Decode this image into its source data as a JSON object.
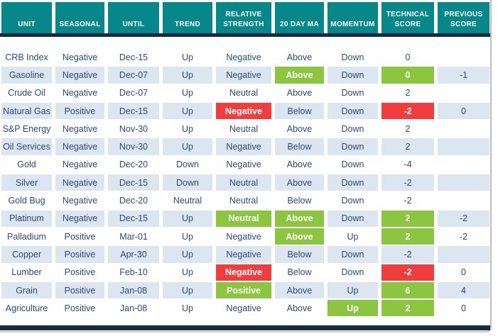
{
  "colors": {
    "header_bg": "#06878a",
    "divider": "#152b46",
    "green": "#8cc540",
    "red": "#f23d3f",
    "row_alt": "#dce6f1",
    "row_plain": "#ffffff",
    "text": "#2b4a7a"
  },
  "table": {
    "columns": [
      "UNIT",
      "SEASONAL",
      "UNTIL",
      "TREND",
      "RELATIVE STRENGTH",
      "20 DAY MA",
      "MOMENTUM",
      "TECHNICAL SCORE",
      "PREVIOUS SCORE"
    ],
    "rows": [
      {
        "cells": [
          "CRB Index",
          "Negative",
          "Dec-15",
          "Up",
          "Negative",
          "Above",
          "Down",
          "0",
          ""
        ],
        "marks": [
          "",
          "",
          "",
          "",
          "",
          "",
          "",
          "",
          ""
        ]
      },
      {
        "cells": [
          "Gasoline",
          "Negative",
          "Dec-07",
          "Up",
          "Negative",
          "Above",
          "Down",
          "0",
          "-1"
        ],
        "marks": [
          "",
          "",
          "",
          "",
          "",
          "green",
          "",
          "green",
          ""
        ]
      },
      {
        "cells": [
          "Crude Oil",
          "Negative",
          "Dec-07",
          "Up",
          "Neutral",
          "Above",
          "Down",
          "2",
          ""
        ],
        "marks": [
          "",
          "",
          "",
          "",
          "",
          "",
          "",
          "",
          ""
        ]
      },
      {
        "cells": [
          "Natural Gas",
          "Positive",
          "Dec-15",
          "Up",
          "Negative",
          "Below",
          "Down",
          "-2",
          "0"
        ],
        "marks": [
          "",
          "",
          "",
          "",
          "red",
          "",
          "",
          "red",
          ""
        ]
      },
      {
        "cells": [
          "S&P Energy",
          "Negative",
          "Nov-30",
          "Up",
          "Neutral",
          "Above",
          "Down",
          "2",
          ""
        ],
        "marks": [
          "",
          "",
          "",
          "",
          "",
          "",
          "",
          "",
          ""
        ]
      },
      {
        "cells": [
          "Oil Services",
          "Negative",
          "Nov-30",
          "Up",
          "Negative",
          "Below",
          "Down",
          "2",
          ""
        ],
        "marks": [
          "",
          "",
          "",
          "",
          "",
          "",
          "",
          "",
          ""
        ]
      },
      {
        "cells": [
          "Gold",
          "Negative",
          "Dec-20",
          "Down",
          "Negative",
          "Above",
          "Down",
          "-4",
          ""
        ],
        "marks": [
          "",
          "",
          "",
          "",
          "",
          "",
          "",
          "",
          ""
        ]
      },
      {
        "cells": [
          "Silver",
          "Negative",
          "Dec-15",
          "Down",
          "Neutral",
          "Above",
          "Down",
          "-2",
          ""
        ],
        "marks": [
          "",
          "",
          "",
          "",
          "",
          "",
          "",
          "",
          ""
        ]
      },
      {
        "cells": [
          "Gold Bug",
          "Negative",
          "Dec-20",
          "Neutral",
          "Neutral",
          "Below",
          "Down",
          "-2",
          ""
        ],
        "marks": [
          "",
          "",
          "",
          "",
          "",
          "",
          "",
          "",
          ""
        ]
      },
      {
        "cells": [
          "Platinum",
          "Negative",
          "Dec-15",
          "Up",
          "Neutral",
          "Above",
          "Down",
          "2",
          "-2"
        ],
        "marks": [
          "",
          "",
          "",
          "",
          "green",
          "green",
          "",
          "green",
          ""
        ]
      },
      {
        "cells": [
          "Palladium",
          "Positive",
          "Mar-01",
          "Up",
          "Negative",
          "Above",
          "Up",
          "2",
          "-2"
        ],
        "marks": [
          "",
          "",
          "",
          "",
          "",
          "green",
          "",
          "green",
          ""
        ]
      },
      {
        "cells": [
          "Copper",
          "Positive",
          "Apr-30",
          "Up",
          "Negative",
          "Below",
          "Down",
          "-2",
          ""
        ],
        "marks": [
          "",
          "",
          "",
          "",
          "",
          "",
          "",
          "",
          ""
        ]
      },
      {
        "cells": [
          "Lumber",
          "Positive",
          "Feb-10",
          "Up",
          "Negative",
          "Below",
          "Down",
          "-2",
          "0"
        ],
        "marks": [
          "",
          "",
          "",
          "",
          "red",
          "",
          "",
          "red",
          ""
        ]
      },
      {
        "cells": [
          "Grain",
          "Positive",
          "Jan-08",
          "Up",
          "Positive",
          "Above",
          "Up",
          "6",
          "4"
        ],
        "marks": [
          "",
          "",
          "",
          "",
          "green",
          "",
          "",
          "green",
          ""
        ]
      },
      {
        "cells": [
          "Agriculture",
          "Positive",
          "Jan-08",
          "Up",
          "Negative",
          "Above",
          "Up",
          "2",
          "0"
        ],
        "marks": [
          "",
          "",
          "",
          "",
          "",
          "",
          "green",
          "green",
          ""
        ]
      }
    ]
  }
}
